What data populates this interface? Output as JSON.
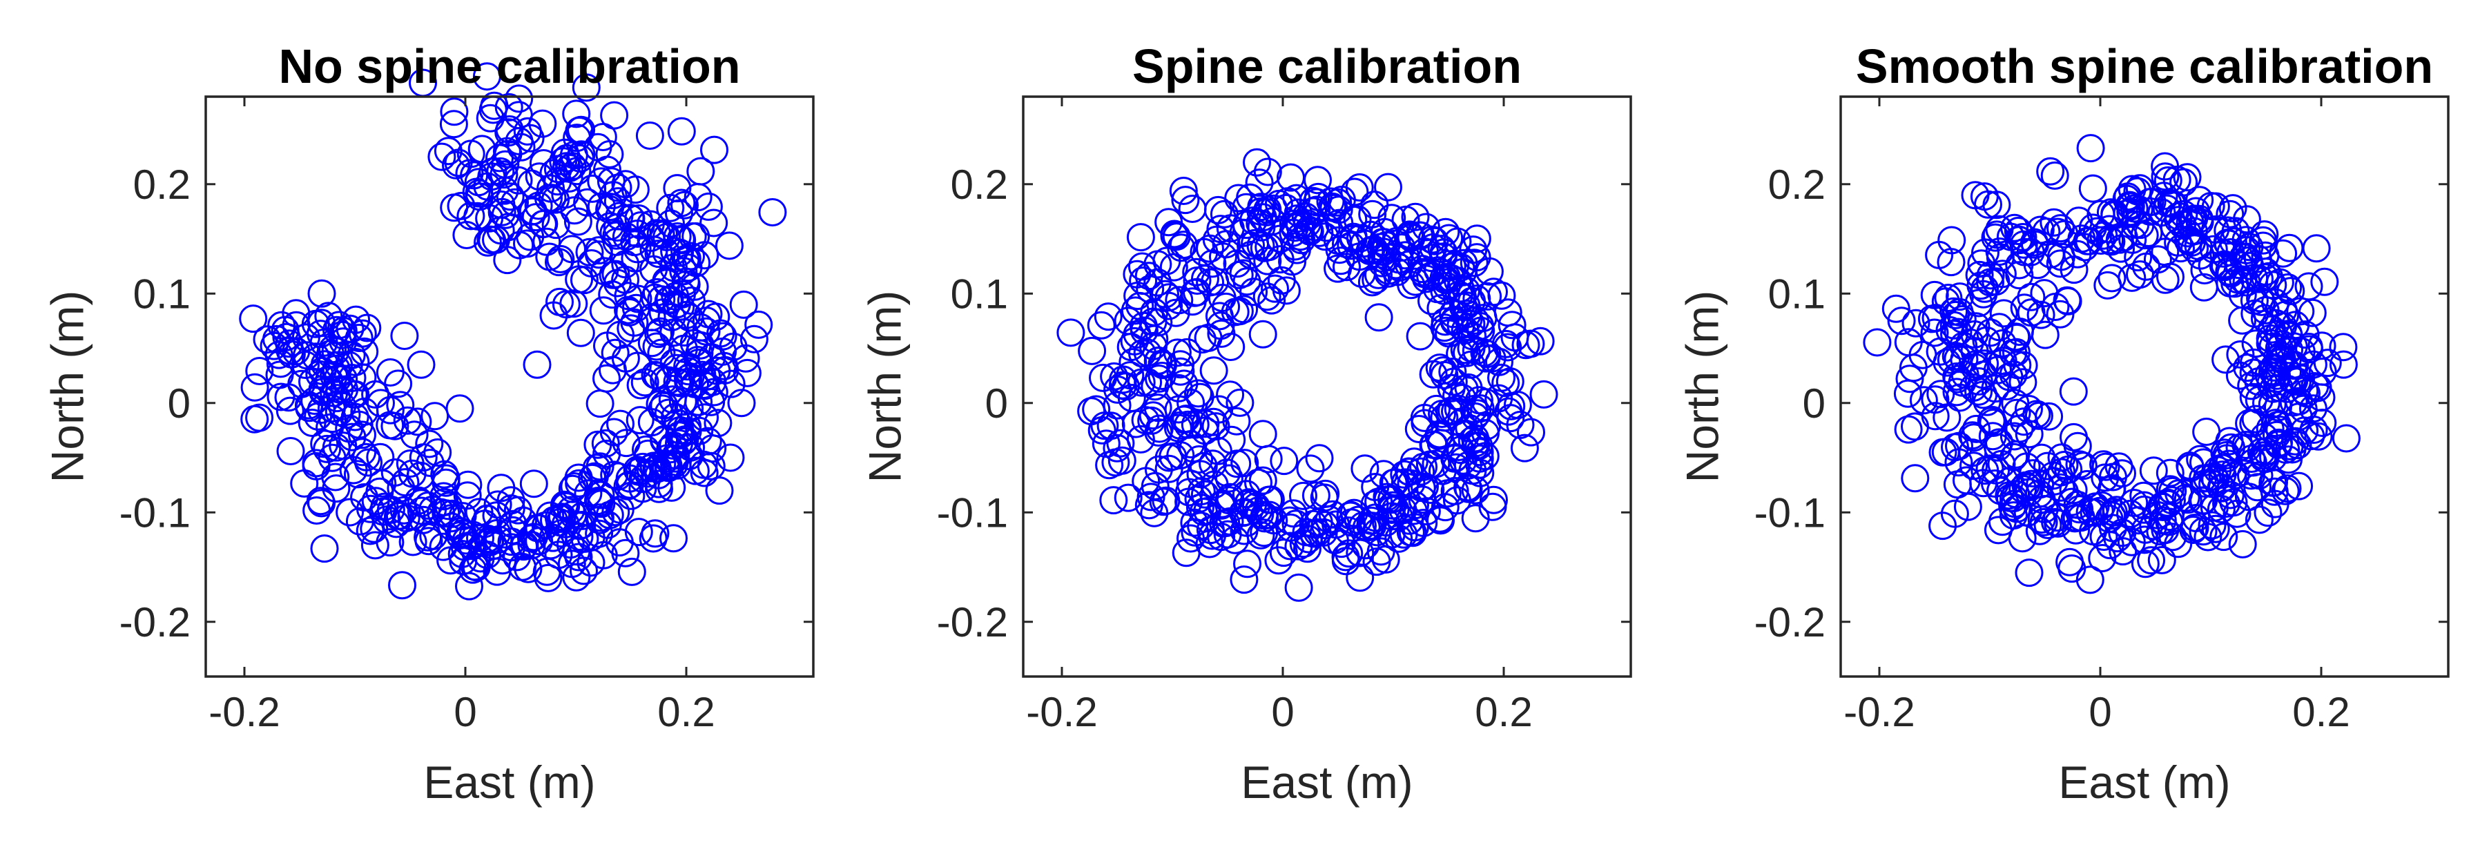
{
  "chart_data": [
    {
      "type": "scatter",
      "title": "No spine calibration",
      "xlabel": "East (m)",
      "ylabel": "North (m)",
      "xlim": [
        -0.235,
        0.315
      ],
      "ylim": [
        -0.25,
        0.28
      ],
      "xticks": [
        -0.2,
        0,
        0.2
      ],
      "yticks": [
        -0.2,
        -0.1,
        0,
        0.1,
        0.2
      ],
      "xtick_labels": [
        "-0.2",
        "0",
        "0.2"
      ],
      "ytick_labels": [
        "-0.2",
        "-0.1",
        "0",
        "0.1",
        "0.2"
      ],
      "grid": false,
      "marker": "open-circle",
      "color": "#0000ff",
      "pattern": "partial-ring",
      "center": [
        0.04,
        0.04
      ],
      "radius": 0.165,
      "angle_gap_start_deg": 110,
      "angle_gap_end_deg": 165,
      "points": [
        [
          -0.16,
          0.005
        ],
        [
          0.04,
          0.25
        ],
        [
          0.08,
          0.21
        ],
        [
          0.145,
          0.2
        ],
        [
          0.08,
          0.08
        ],
        [
          0.065,
          0.035
        ],
        [
          -0.005,
          -0.005
        ],
        [
          -0.04,
          0.035
        ],
        [
          0.235,
          0.03
        ],
        [
          0.25,
          0.0
        ],
        [
          0.24,
          -0.05
        ],
        [
          0.23,
          -0.08
        ],
        [
          0.075,
          -0.16
        ],
        [
          0.06,
          -0.13
        ],
        [
          -0.135,
          -0.055
        ],
        [
          -0.13,
          0.1
        ]
      ]
    },
    {
      "type": "scatter",
      "title": "Spine calibration",
      "xlabel": "East (m)",
      "ylabel": "North (m)",
      "xlim": [
        -0.235,
        0.315
      ],
      "ylim": [
        -0.25,
        0.28
      ],
      "xticks": [
        -0.2,
        0,
        0.2
      ],
      "yticks": [
        -0.2,
        -0.1,
        0,
        0.1,
        0.2
      ],
      "xtick_labels": [
        "-0.2",
        "0",
        "0.2"
      ],
      "ytick_labels": [
        "-0.2",
        "-0.1",
        "0",
        "0.1",
        "0.2"
      ],
      "grid": false,
      "marker": "open-circle",
      "color": "#0000ff",
      "pattern": "ring",
      "center": [
        0.035,
        0.025
      ],
      "radius": 0.14,
      "points": [
        [
          -0.14,
          0.075
        ],
        [
          0.21,
          0.06
        ],
        [
          0.215,
          -0.02
        ],
        [
          0.19,
          -0.095
        ],
        [
          0.085,
          -0.145
        ],
        [
          0.025,
          -0.06
        ],
        [
          -0.02,
          0.175
        ],
        [
          0.12,
          0.17
        ],
        [
          0.075,
          -0.13
        ]
      ]
    },
    {
      "type": "scatter",
      "title": "Smooth spine calibration",
      "xlabel": "East (m)",
      "ylabel": "North (m)",
      "xlim": [
        -0.235,
        0.315
      ],
      "ylim": [
        -0.25,
        0.28
      ],
      "xticks": [
        -0.2,
        0,
        0.2
      ],
      "yticks": [
        -0.2,
        -0.1,
        0,
        0.1,
        0.2
      ],
      "xtick_labels": [
        "-0.2",
        "0",
        "0.2"
      ],
      "ytick_labels": [
        "-0.2",
        "-0.1",
        "0",
        "0.1",
        "0.2"
      ],
      "grid": false,
      "marker": "open-circle",
      "color": "#0000ff",
      "pattern": "ring",
      "center": [
        0.03,
        0.03
      ],
      "radius": 0.14,
      "points": [
        [
          -0.13,
          0.01
        ],
        [
          0.2,
          0.005
        ],
        [
          0.045,
          0.175
        ],
        [
          0.04,
          -0.125
        ],
        [
          -0.1,
          -0.06
        ],
        [
          0.15,
          0.12
        ]
      ]
    }
  ]
}
